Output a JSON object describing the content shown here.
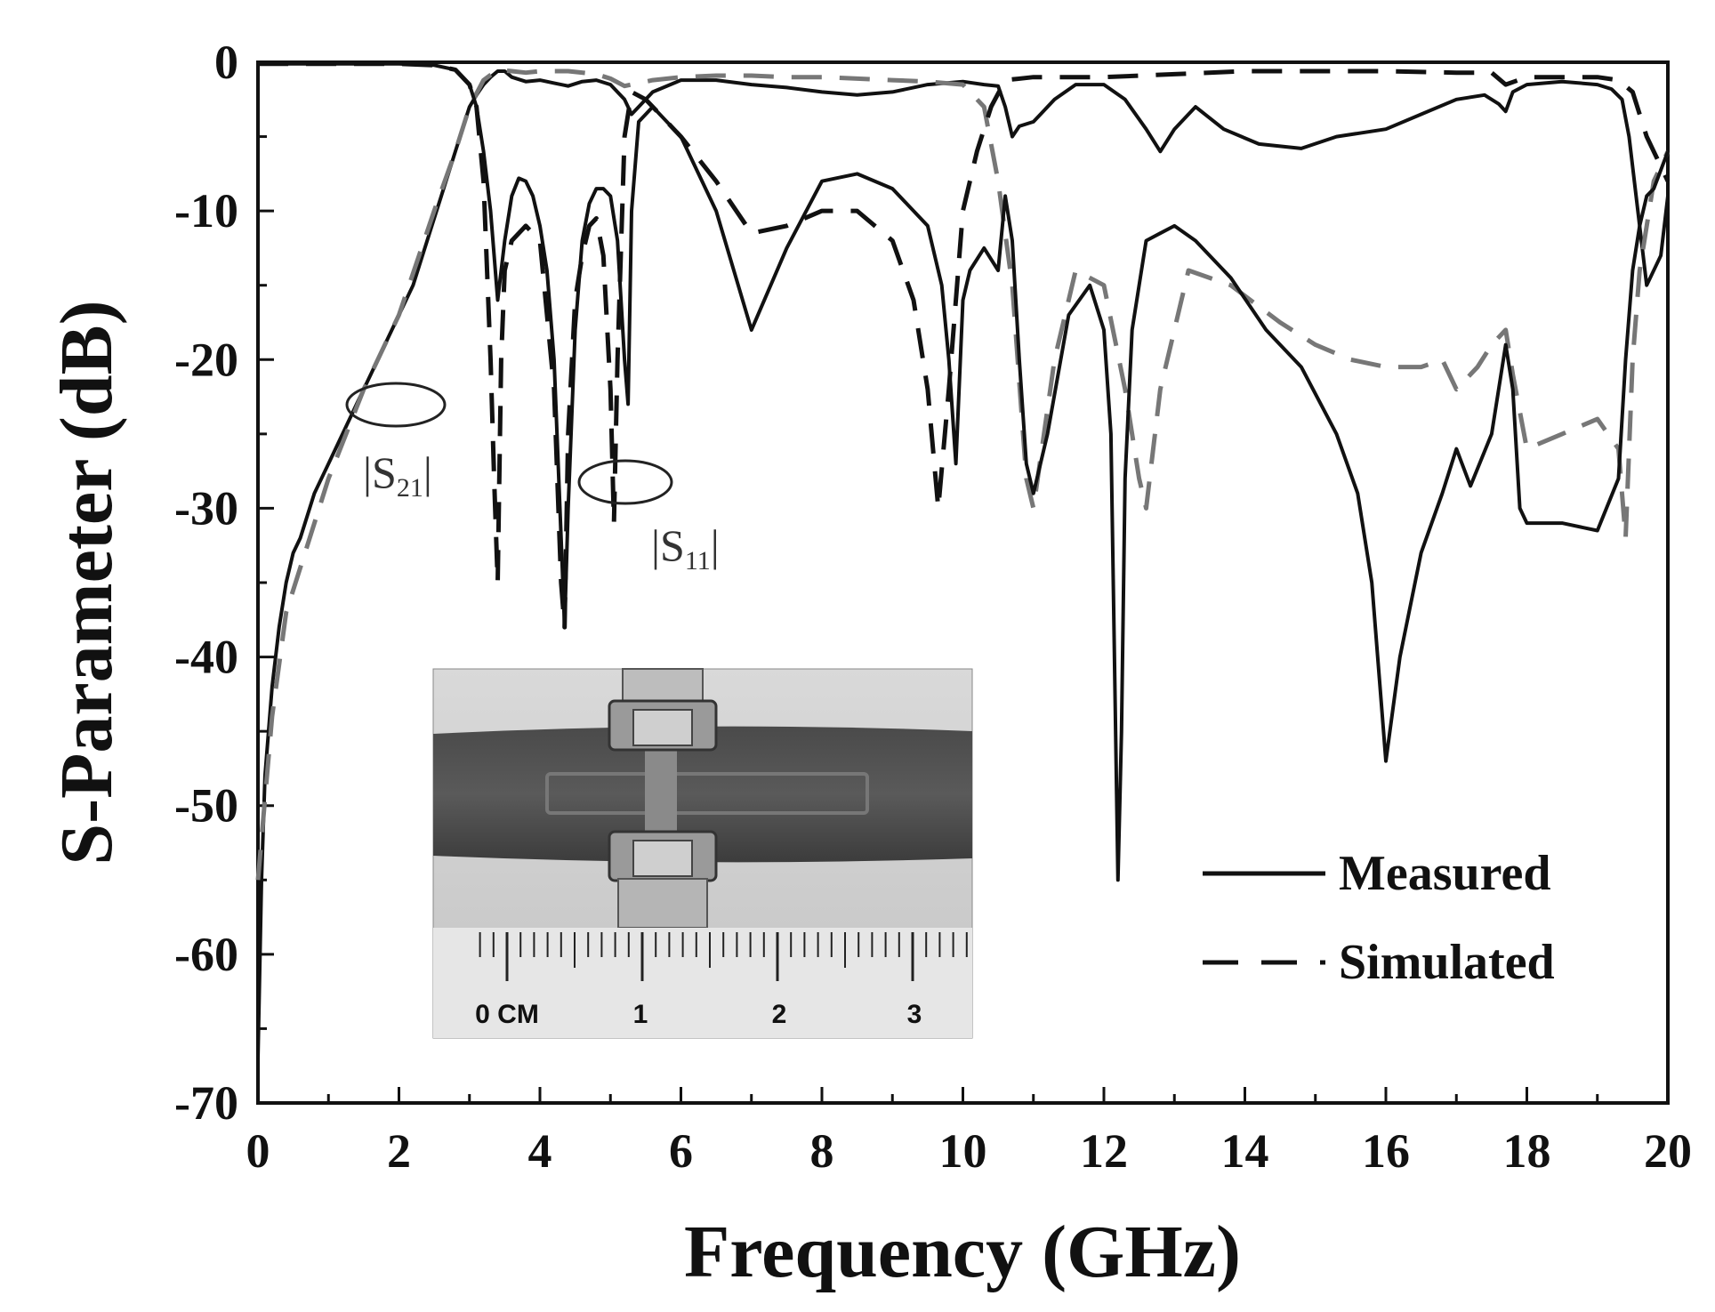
{
  "chart_data": {
    "type": "line",
    "xlabel": "Frequency (GHz)",
    "ylabel": "S-Parameter (dB)",
    "xlim": [
      0,
      20
    ],
    "ylim": [
      -70,
      0
    ],
    "xticks": [
      0,
      2,
      4,
      6,
      8,
      10,
      12,
      14,
      16,
      18,
      20
    ],
    "yticks": [
      0,
      -10,
      -20,
      -30,
      -40,
      -50,
      -60,
      -70
    ],
    "grid": false,
    "legend": {
      "placement": "bottom-right",
      "entries": [
        {
          "label": "Measured",
          "style": "solid"
        },
        {
          "label": "Simulated",
          "style": "dashed"
        }
      ]
    },
    "annotations": [
      {
        "text": "S",
        "sub": "21",
        "target": "|S21| curves",
        "x": 1.8,
        "y": -23
      },
      {
        "text": "S",
        "sub": "11",
        "target": "|S11| curves",
        "x": 5.2,
        "y": -28.5
      }
    ],
    "inset": {
      "description_visible": "photograph of fabricated filter with ruler",
      "ruler_labels": [
        "0 CM",
        "1",
        "2",
        "3"
      ]
    },
    "series": [
      {
        "label_ref": "Measured",
        "param": "S21",
        "style": "solid",
        "color": "#111111",
        "x": [
          0.0,
          0.05,
          0.1,
          0.2,
          0.3,
          0.4,
          0.5,
          0.6,
          0.8,
          1.0,
          1.2,
          1.4,
          1.6,
          1.8,
          2.0,
          2.2,
          2.4,
          2.6,
          2.8,
          3.0,
          3.1,
          3.2,
          3.3,
          3.4,
          3.5,
          3.6,
          3.8,
          4.0,
          4.2,
          4.4,
          4.6,
          4.8,
          5.0,
          5.2,
          5.3,
          5.4,
          5.5,
          5.6,
          6.0,
          6.5,
          7.0,
          7.5,
          8.0,
          8.5,
          9.0,
          9.5,
          10.0,
          10.3,
          10.5,
          10.6,
          10.7,
          10.8,
          11.0,
          11.3,
          11.6,
          12.0,
          12.3,
          12.6,
          12.8,
          13.0,
          13.3,
          13.7,
          14.2,
          14.8,
          15.3,
          16.0,
          16.5,
          17.0,
          17.4,
          17.6,
          17.7,
          17.8,
          18.0,
          18.5,
          19.0,
          19.2,
          19.35,
          19.45,
          19.55,
          19.7,
          19.9,
          20.0
        ],
        "y": [
          -67,
          -55,
          -48,
          -42,
          -38,
          -35,
          -33,
          -32,
          -29,
          -27,
          -25,
          -23,
          -21,
          -19,
          -17,
          -15,
          -12,
          -9,
          -6,
          -3,
          -2.2,
          -1.5,
          -1,
          -0.6,
          -0.6,
          -1,
          -1.3,
          -1.2,
          -1.4,
          -1.6,
          -1.3,
          -1.2,
          -1.5,
          -2.5,
          -3.5,
          -3,
          -2.5,
          -2,
          -1.2,
          -1.2,
          -1.5,
          -1.7,
          -2,
          -2.2,
          -2,
          -1.5,
          -1.3,
          -1.5,
          -1.6,
          -3,
          -5,
          -4.3,
          -4,
          -2.5,
          -1.5,
          -1.5,
          -2.5,
          -4.5,
          -6,
          -4.5,
          -3,
          -4.5,
          -5.5,
          -5.8,
          -5,
          -4.5,
          -3.5,
          -2.5,
          -2.2,
          -2.8,
          -3.3,
          -2,
          -1.5,
          -1.3,
          -1.5,
          -1.8,
          -2.5,
          -5,
          -9,
          -15,
          -13,
          -9
        ]
      },
      {
        "label_ref": "Simulated",
        "param": "S21",
        "style": "dashed",
        "color": "#777777",
        "x": [
          0.0,
          0.2,
          0.4,
          0.6,
          1.0,
          1.5,
          2.0,
          2.5,
          2.8,
          3.0,
          3.2,
          3.4,
          3.6,
          3.8,
          4.0,
          4.4,
          4.8,
          5.0,
          5.2,
          5.4,
          5.6,
          6.0,
          6.5,
          7.0,
          7.5,
          8.0,
          8.5,
          9.0,
          9.5,
          10.0,
          10.3,
          10.5,
          10.7,
          10.9,
          11.0,
          11.3,
          11.6,
          12.0,
          12.3,
          12.5,
          12.6,
          12.8,
          13.2,
          13.8,
          14.5,
          15.0,
          15.5,
          16.0,
          16.5,
          16.8,
          17.0,
          17.3,
          17.5,
          17.7,
          17.8,
          18.0,
          18.5,
          19.0,
          19.3,
          19.4,
          19.5,
          19.6,
          19.8,
          20.0
        ],
        "y": [
          -55,
          -44,
          -37,
          -34,
          -28,
          -22,
          -17,
          -10,
          -6,
          -3,
          -1.2,
          -0.5,
          -0.6,
          -0.7,
          -0.6,
          -0.6,
          -0.8,
          -1.1,
          -1.6,
          -1.4,
          -1.2,
          -1,
          -0.9,
          -0.9,
          -1,
          -1,
          -1.1,
          -1.2,
          -1.3,
          -1.5,
          -3,
          -8,
          -15,
          -28,
          -30,
          -20,
          -14,
          -15,
          -22,
          -28,
          -30,
          -22,
          -14,
          -15,
          -17.5,
          -19,
          -20,
          -20.5,
          -20.5,
          -20,
          -22,
          -20.5,
          -19,
          -18,
          -21,
          -26,
          -25,
          -24,
          -26,
          -32,
          -20,
          -14,
          -8,
          -6
        ]
      },
      {
        "label_ref": "Measured",
        "param": "S11",
        "style": "solid",
        "color": "#111111",
        "x": [
          0.0,
          0.5,
          1.0,
          1.5,
          2.0,
          2.5,
          2.8,
          3.0,
          3.1,
          3.2,
          3.3,
          3.4,
          3.5,
          3.6,
          3.7,
          3.8,
          3.9,
          4.0,
          4.1,
          4.2,
          4.3,
          4.35,
          4.4,
          4.5,
          4.6,
          4.7,
          4.8,
          4.9,
          5.0,
          5.1,
          5.2,
          5.25,
          5.3,
          5.4,
          5.6,
          6.0,
          6.5,
          7.0,
          7.5,
          8.0,
          8.5,
          9.0,
          9.5,
          9.7,
          9.8,
          9.9,
          10.0,
          10.1,
          10.3,
          10.5,
          10.6,
          10.7,
          10.8,
          10.9,
          11.0,
          11.2,
          11.5,
          11.8,
          12.0,
          12.1,
          12.2,
          12.25,
          12.3,
          12.4,
          12.6,
          12.8,
          13.0,
          13.3,
          13.8,
          14.3,
          14.8,
          15.3,
          15.6,
          15.8,
          16.0,
          16.2,
          16.5,
          16.8,
          17.0,
          17.2,
          17.5,
          17.7,
          17.8,
          17.9,
          18.0,
          18.5,
          19.0,
          19.3,
          19.4,
          19.5,
          19.6,
          19.7,
          19.8,
          20.0
        ],
        "y": [
          -0.1,
          -0.1,
          -0.1,
          -0.1,
          -0.1,
          -0.2,
          -0.5,
          -1.5,
          -3,
          -6,
          -10,
          -16,
          -12,
          -9,
          -7.8,
          -8,
          -9,
          -11,
          -14,
          -20,
          -32,
          -38,
          -30,
          -18,
          -12,
          -9.5,
          -8.5,
          -8.5,
          -9,
          -12,
          -20,
          -23,
          -10,
          -4,
          -3,
          -5,
          -10,
          -18,
          -12.5,
          -8,
          -7.5,
          -8.5,
          -11,
          -15,
          -20,
          -27,
          -16,
          -14,
          -12.5,
          -14,
          -9,
          -12,
          -20,
          -27,
          -29,
          -25,
          -17,
          -15,
          -18,
          -25,
          -55,
          -45,
          -28,
          -18,
          -12,
          -11.5,
          -11,
          -12,
          -14.5,
          -18,
          -20.5,
          -25,
          -29,
          -35,
          -47,
          -40,
          -33,
          -29,
          -26,
          -28.5,
          -25,
          -19,
          -22,
          -30,
          -31,
          -31,
          -31.5,
          -28,
          -20,
          -14,
          -11,
          -9,
          -8.5,
          -6
        ]
      },
      {
        "label_ref": "Simulated",
        "param": "S11",
        "style": "dashed",
        "color": "#111111",
        "x": [
          0.0,
          0.5,
          1.0,
          1.5,
          2.0,
          2.5,
          2.8,
          3.0,
          3.1,
          3.2,
          3.3,
          3.35,
          3.4,
          3.45,
          3.5,
          3.6,
          3.8,
          4.0,
          4.2,
          4.3,
          4.35,
          4.4,
          4.5,
          4.6,
          4.7,
          4.8,
          4.9,
          5.0,
          5.05,
          5.1,
          5.2,
          5.3,
          5.5,
          6.0,
          6.5,
          7.0,
          7.5,
          8.0,
          8.5,
          9.0,
          9.3,
          9.5,
          9.65,
          9.8,
          10.0,
          10.2,
          10.4,
          10.6,
          11.0,
          12.0,
          13.0,
          14.0,
          15.0,
          16.0,
          17.0,
          17.5,
          17.7,
          18.0,
          19.0,
          19.3,
          19.5,
          19.7,
          20.0
        ],
        "y": [
          -0.1,
          -0.1,
          -0.1,
          -0.1,
          -0.1,
          -0.2,
          -0.5,
          -1.5,
          -3,
          -8,
          -20,
          -28,
          -35,
          -20,
          -14,
          -12,
          -11,
          -12,
          -22,
          -35,
          -38,
          -25,
          -16,
          -13,
          -11,
          -10.5,
          -13,
          -22,
          -31,
          -20,
          -5,
          -2,
          -2.5,
          -5,
          -8,
          -11.5,
          -11,
          -10,
          -10,
          -12,
          -16,
          -22,
          -30,
          -22,
          -10,
          -6,
          -3,
          -1.2,
          -1,
          -1,
          -0.8,
          -0.6,
          -0.6,
          -0.6,
          -0.7,
          -0.7,
          -1.5,
          -1,
          -1,
          -1.2,
          -2,
          -5,
          -8
        ]
      }
    ]
  }
}
